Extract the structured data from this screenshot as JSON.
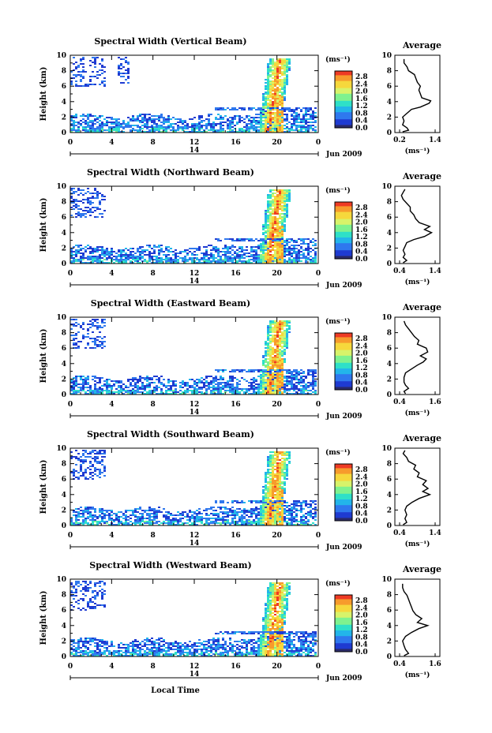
{
  "figure": {
    "xlabel_bottom": "Local Time",
    "date_label": "Jun 2009",
    "date_tick": "14",
    "colorbar_unit": "(ms⁻¹)",
    "colorbar_ticks": [
      "2.8",
      "2.4",
      "2.0",
      "1.6",
      "1.2",
      "0.8",
      "0.4",
      "0.0"
    ],
    "colors": {
      "colormap": [
        "#2a2a6a",
        "#1f3bd1",
        "#2f78ee",
        "#23b5ea",
        "#2fe0c8",
        "#7ff28f",
        "#d8f36a",
        "#f6d83c",
        "#f79b2c",
        "#ee3b24"
      ],
      "frame": "#000000"
    }
  },
  "chart_data": [
    {
      "type": "heatmap",
      "title": "Spectral Width (Vertical Beam)",
      "ylabel": "Height (km)",
      "xlim": [
        0,
        24
      ],
      "ylim": [
        0,
        10
      ],
      "xticks": [
        "0",
        "4",
        "8",
        "12",
        "16",
        "20",
        "0"
      ],
      "yticks": [
        "0",
        "2",
        "4",
        "6",
        "8",
        "10"
      ],
      "colorbar": {
        "unit": "(ms⁻¹)",
        "range": [
          0.0,
          2.8
        ]
      },
      "average": {
        "title": "Average",
        "xlabel": "(ms⁻¹)",
        "xticks": [
          "0.2",
          "1.4"
        ],
        "xlim": [
          0.2,
          1.4
        ],
        "ylim": [
          0,
          10
        ],
        "profile": [
          [
            0.3,
            0.1
          ],
          [
            0.5,
            0.3
          ],
          [
            0.45,
            0.6
          ],
          [
            0.3,
            1
          ],
          [
            0.35,
            1.5
          ],
          [
            0.3,
            2
          ],
          [
            0.45,
            2.5
          ],
          [
            0.6,
            3
          ],
          [
            0.9,
            3.3
          ],
          [
            1.2,
            3.8
          ],
          [
            1.25,
            4.1
          ],
          [
            0.95,
            4.5
          ],
          [
            0.9,
            5
          ],
          [
            0.85,
            5.5
          ],
          [
            0.9,
            6
          ],
          [
            0.8,
            6.5
          ],
          [
            0.75,
            7
          ],
          [
            0.7,
            7.5
          ],
          [
            0.5,
            8
          ],
          [
            0.45,
            8.5
          ],
          [
            0.35,
            9
          ],
          [
            0.35,
            9.5
          ]
        ]
      }
    },
    {
      "type": "heatmap",
      "title": "Spectral Width (Northward Beam)",
      "ylabel": "Height (km)",
      "xlim": [
        0,
        24
      ],
      "ylim": [
        0,
        10
      ],
      "xticks": [
        "0",
        "4",
        "8",
        "12",
        "16",
        "20",
        "0"
      ],
      "yticks": [
        "0",
        "2",
        "4",
        "6",
        "8",
        "10"
      ],
      "colorbar": {
        "unit": "(ms⁻¹)",
        "range": [
          0.0,
          2.8
        ]
      },
      "average": {
        "title": "Average",
        "xlabel": "(ms⁻¹)",
        "xticks": [
          "0.4",
          "1.4"
        ],
        "xlim": [
          0.4,
          1.4
        ],
        "ylim": [
          0,
          10
        ],
        "profile": [
          [
            0.5,
            0.1
          ],
          [
            0.6,
            0.4
          ],
          [
            0.5,
            0.8
          ],
          [
            0.55,
            1.2
          ],
          [
            0.5,
            1.7
          ],
          [
            0.55,
            2.2
          ],
          [
            0.6,
            2.7
          ],
          [
            0.8,
            3.1
          ],
          [
            1.1,
            3.5
          ],
          [
            1.3,
            4.0
          ],
          [
            1.1,
            4.4
          ],
          [
            1.25,
            4.8
          ],
          [
            0.95,
            5.3
          ],
          [
            0.85,
            5.8
          ],
          [
            0.8,
            6.3
          ],
          [
            0.7,
            6.8
          ],
          [
            0.7,
            7.3
          ],
          [
            0.6,
            7.8
          ],
          [
            0.5,
            8.3
          ],
          [
            0.45,
            8.8
          ],
          [
            0.5,
            9.2
          ],
          [
            0.55,
            9.6
          ]
        ]
      }
    },
    {
      "type": "heatmap",
      "title": "Spectral Width (Eastward Beam)",
      "ylabel": "Height (km)",
      "xlim": [
        0,
        24
      ],
      "ylim": [
        0,
        10
      ],
      "xticks": [
        "0",
        "4",
        "8",
        "12",
        "16",
        "20",
        "0"
      ],
      "yticks": [
        "0",
        "2",
        "4",
        "6",
        "8",
        "10"
      ],
      "colorbar": {
        "unit": "(ms⁻¹)",
        "range": [
          0.0,
          2.8
        ]
      },
      "average": {
        "title": "Average",
        "xlabel": "(ms⁻¹)",
        "xticks": [
          "0.4",
          "1.6"
        ],
        "xlim": [
          0.4,
          1.6
        ],
        "ylim": [
          0,
          10
        ],
        "profile": [
          [
            0.6,
            0.1
          ],
          [
            0.55,
            0.4
          ],
          [
            0.7,
            0.8
          ],
          [
            0.6,
            1.2
          ],
          [
            0.55,
            1.6
          ],
          [
            0.55,
            2.2
          ],
          [
            0.6,
            2.8
          ],
          [
            0.8,
            3.3
          ],
          [
            1.0,
            3.8
          ],
          [
            1.2,
            4.2
          ],
          [
            1.3,
            4.6
          ],
          [
            1.1,
            5.0
          ],
          [
            1.35,
            5.5
          ],
          [
            1.3,
            6.0
          ],
          [
            1.0,
            6.5
          ],
          [
            1.05,
            7.0
          ],
          [
            0.9,
            7.5
          ],
          [
            0.8,
            8.0
          ],
          [
            0.7,
            8.5
          ],
          [
            0.6,
            9.0
          ],
          [
            0.55,
            9.5
          ]
        ]
      }
    },
    {
      "type": "heatmap",
      "title": "Spectral Width (Southward Beam)",
      "ylabel": "Height (km)",
      "xlim": [
        0,
        24
      ],
      "ylim": [
        0,
        10
      ],
      "xticks": [
        "0",
        "4",
        "8",
        "12",
        "16",
        "20",
        "0"
      ],
      "yticks": [
        "0",
        "2",
        "4",
        "6",
        "8",
        "10"
      ],
      "colorbar": {
        "unit": "(ms⁻¹)",
        "range": [
          0.0,
          2.8
        ]
      },
      "average": {
        "title": "Average",
        "xlabel": "(ms⁻¹)",
        "xticks": [
          "0.4",
          "1.4"
        ],
        "xlim": [
          0.4,
          1.4
        ],
        "ylim": [
          0,
          10
        ],
        "profile": [
          [
            0.5,
            0.1
          ],
          [
            0.6,
            0.4
          ],
          [
            0.55,
            0.9
          ],
          [
            0.6,
            1.4
          ],
          [
            0.55,
            2.0
          ],
          [
            0.6,
            2.5
          ],
          [
            0.75,
            3.0
          ],
          [
            0.95,
            3.5
          ],
          [
            1.25,
            4.0
          ],
          [
            1.05,
            4.4
          ],
          [
            1.2,
            4.8
          ],
          [
            1.05,
            5.3
          ],
          [
            1.15,
            5.8
          ],
          [
            0.9,
            6.3
          ],
          [
            0.95,
            6.8
          ],
          [
            0.8,
            7.3
          ],
          [
            0.85,
            7.8
          ],
          [
            0.65,
            8.3
          ],
          [
            0.6,
            8.8
          ],
          [
            0.5,
            9.3
          ],
          [
            0.55,
            9.7
          ]
        ]
      }
    },
    {
      "type": "heatmap",
      "title": "Spectral Width (Westward Beam)",
      "ylabel": "Height (km)",
      "xlabel": "Local Time",
      "xlim": [
        0,
        24
      ],
      "ylim": [
        0,
        10
      ],
      "xticks": [
        "0",
        "4",
        "8",
        "12",
        "16",
        "20",
        "0"
      ],
      "yticks": [
        "0",
        "2",
        "4",
        "6",
        "8",
        "10"
      ],
      "colorbar": {
        "unit": "(ms⁻¹)",
        "range": [
          0.0,
          2.8
        ]
      },
      "average": {
        "title": "Average",
        "xlabel": "(ms⁻¹)",
        "xticks": [
          "0.4",
          "1.6"
        ],
        "xlim": [
          0.4,
          1.6
        ],
        "ylim": [
          0,
          10
        ],
        "profile": [
          [
            0.55,
            0.1
          ],
          [
            0.7,
            0.4
          ],
          [
            0.6,
            0.9
          ],
          [
            0.55,
            1.4
          ],
          [
            0.5,
            2.0
          ],
          [
            0.6,
            2.6
          ],
          [
            0.8,
            3.1
          ],
          [
            1.05,
            3.6
          ],
          [
            1.35,
            4.0
          ],
          [
            1.0,
            4.4
          ],
          [
            1.15,
            4.9
          ],
          [
            0.95,
            5.4
          ],
          [
            0.85,
            5.9
          ],
          [
            0.8,
            6.4
          ],
          [
            0.75,
            6.9
          ],
          [
            0.7,
            7.4
          ],
          [
            0.65,
            7.9
          ],
          [
            0.55,
            8.4
          ],
          [
            0.5,
            8.9
          ],
          [
            0.5,
            9.4
          ]
        ]
      }
    }
  ]
}
